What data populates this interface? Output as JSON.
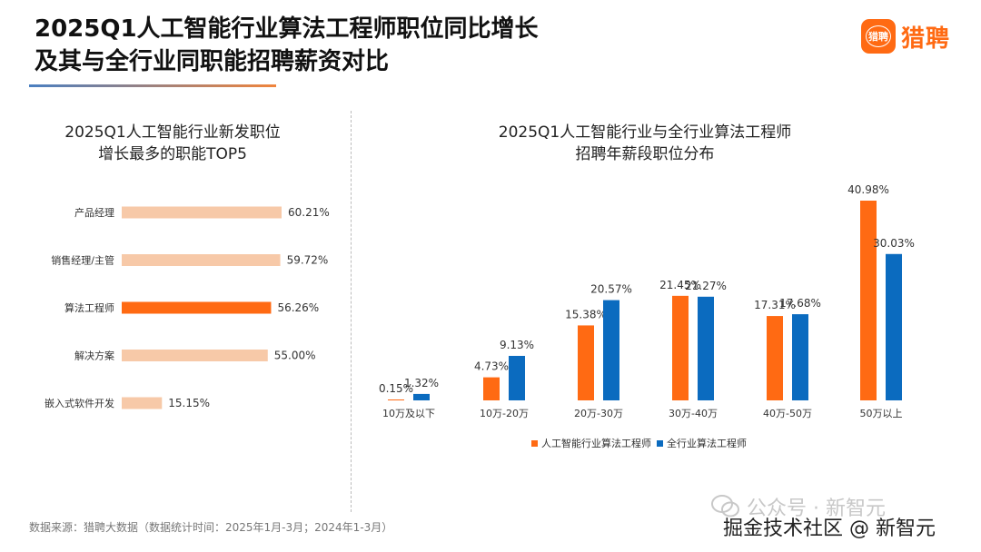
{
  "header": {
    "title_line1": "2025Q1人工智能行业算法工程师职位同比增长",
    "title_line2": "及其与全行业同职能招聘薪资对比",
    "logo_mark": "猎聘",
    "logo_text": "猎聘",
    "accent_blue": "#4a7fc1",
    "accent_orange": "#f0843c"
  },
  "left_panel": {
    "title_line1": "2025Q1人工智能行业新发职位",
    "title_line2": "增长最多的职能TOP5"
  },
  "right_panel": {
    "title_line1": "2025Q1人工智能行业与全行业算法工程师",
    "title_line2": "招聘年薪段职位分布"
  },
  "chart_data": [
    {
      "type": "bar",
      "orientation": "horizontal",
      "title": "2025Q1人工智能行业新发职位增长最多的职能TOP5",
      "categories": [
        "产品经理",
        "销售经理/主管",
        "算法工程师",
        "解决方案",
        "嵌入式软件开发"
      ],
      "values": [
        60.21,
        59.72,
        56.26,
        55.0,
        15.15
      ],
      "value_labels": [
        "60.21%",
        "59.72%",
        "56.26%",
        "55.00%",
        "15.15%"
      ],
      "highlight_index": 2,
      "colors": {
        "default": "#f7c9a8",
        "highlight": "#ff6a13"
      },
      "grid": false
    },
    {
      "type": "bar",
      "orientation": "vertical",
      "title": "2025Q1人工智能行业与全行业算法工程师招聘年薪段职位分布",
      "categories": [
        "10万及以下",
        "10万-20万",
        "20万-30万",
        "30万-40万",
        "40万-50万",
        "50万以上"
      ],
      "series": [
        {
          "name": "人工智能行业算法工程师",
          "color": "#ff6a13",
          "values": [
            0.15,
            4.73,
            15.38,
            21.45,
            17.31,
            40.98
          ],
          "labels": [
            "0.15%",
            "4.73%",
            "15.38%",
            "21.45%",
            "17.31%",
            "40.98%"
          ]
        },
        {
          "name": "全行业算法工程师",
          "color": "#0b6bbf",
          "values": [
            1.32,
            9.13,
            20.57,
            21.27,
            17.68,
            30.03
          ],
          "labels": [
            "1.32%",
            "9.13%",
            "20.57%",
            "21.27%",
            "17.68%",
            "30.03%"
          ]
        }
      ],
      "legend_position": "bottom",
      "grid": false
    }
  ],
  "footer": {
    "source": "数据来源：猎聘大数据（数据统计时间：2025年1月-3月；2024年1-3月）"
  },
  "watermark": {
    "line1": "公众号 · 新智元",
    "line2": "掘金技术社区 @ 新智元",
    "icon": "wechat-icon"
  }
}
